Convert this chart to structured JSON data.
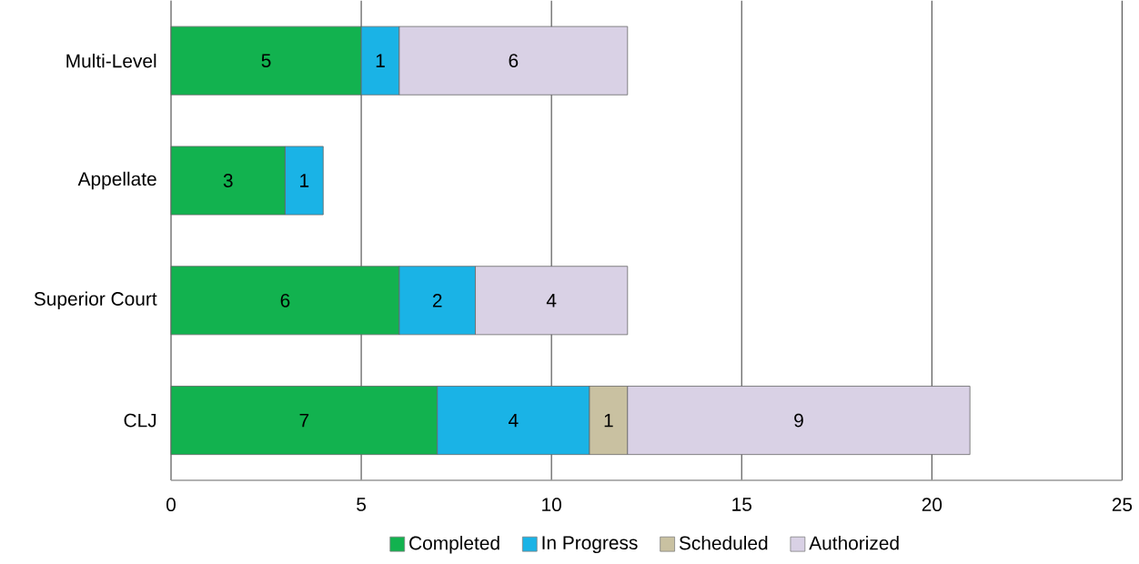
{
  "chart_data": {
    "type": "bar",
    "orientation": "horizontal",
    "stacked": true,
    "categories": [
      "Multi-Level",
      "Appellate",
      "Superior Court",
      "CLJ"
    ],
    "series": [
      {
        "name": "Completed",
        "color": "#12b24f",
        "values": [
          5,
          3,
          6,
          7
        ]
      },
      {
        "name": "In Progress",
        "color": "#1ab3e6",
        "values": [
          1,
          1,
          2,
          4
        ]
      },
      {
        "name": "Scheduled",
        "color": "#c9c1a1",
        "values": [
          null,
          null,
          null,
          1
        ]
      },
      {
        "name": "Authorized",
        "color": "#d9d1e5",
        "values": [
          6,
          null,
          4,
          9
        ]
      }
    ],
    "xlim": [
      0,
      25
    ],
    "xticks": [
      0,
      5,
      10,
      15,
      20,
      25
    ],
    "grid": "x",
    "legend": "bottom",
    "data_labels": true
  }
}
